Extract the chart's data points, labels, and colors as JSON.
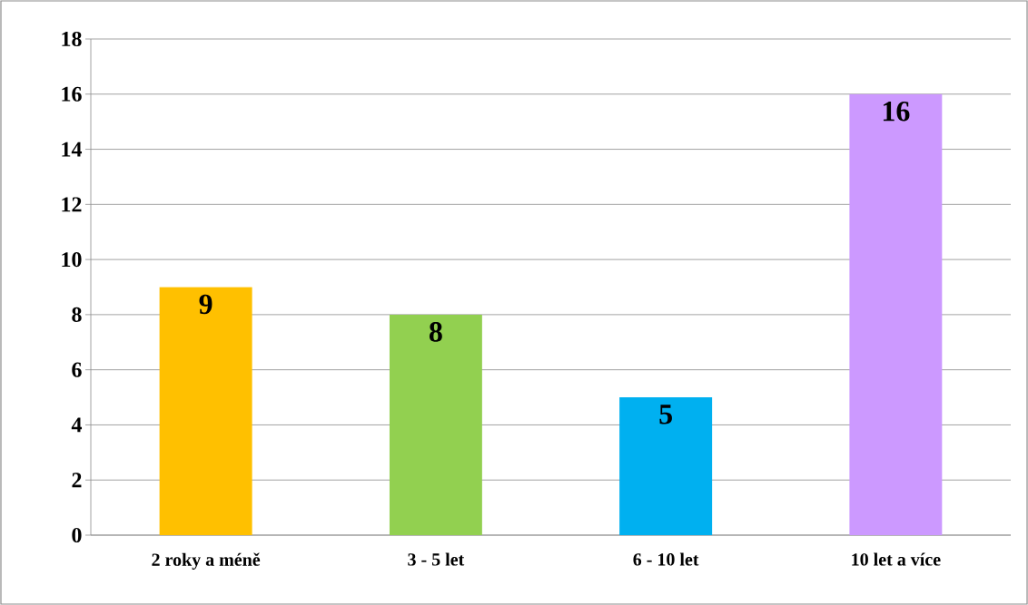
{
  "chart_data": {
    "type": "bar",
    "categories": [
      "2 roky a méně",
      "3 - 5 let",
      "6 - 10 let",
      "10 let a více"
    ],
    "values": [
      9,
      8,
      5,
      16
    ],
    "colors": [
      "#ffc000",
      "#92d050",
      "#00b0f0",
      "#cc99ff"
    ],
    "ylim": [
      0,
      18
    ],
    "yticks": [
      0,
      2,
      4,
      6,
      8,
      10,
      12,
      14,
      16,
      18
    ],
    "grid": "y",
    "data_labels": true
  }
}
